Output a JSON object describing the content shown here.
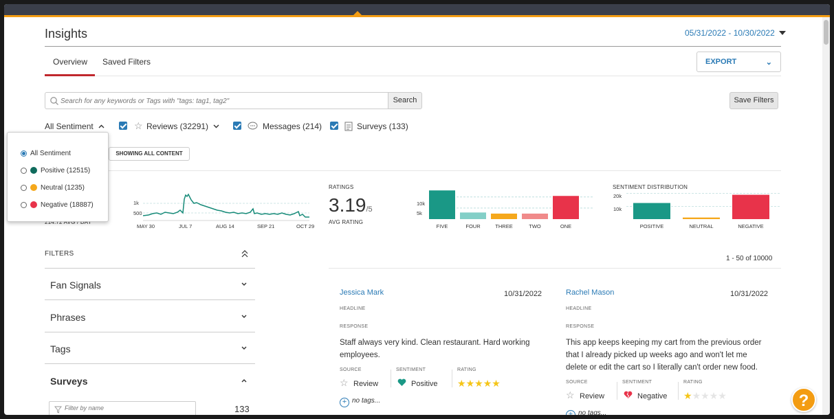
{
  "header": {
    "title": "Insights",
    "date_range": "05/31/2022 - 10/30/2022"
  },
  "tabs": [
    {
      "label": "Overview",
      "active": true
    },
    {
      "label": "Saved Filters",
      "active": false
    }
  ],
  "export": {
    "label": "EXPORT"
  },
  "search": {
    "placeholder": "Search for any keywords or Tags with \"tags: tag1, tag2\"",
    "button_label": "Search"
  },
  "save_filters": {
    "label": "Save Filters"
  },
  "sentiment_toggle": {
    "label": "All Sentiment"
  },
  "content_filters": [
    {
      "label": "Reviews (32291)",
      "checked": true,
      "icon": "star-icon"
    },
    {
      "label": "Messages (214)",
      "checked": true,
      "icon": "chat-bubble-icon"
    },
    {
      "label": "Surveys (133)",
      "checked": true,
      "icon": "clipboard-icon"
    }
  ],
  "showing": {
    "label": "SHOWING ALL CONTENT"
  },
  "sentiment_dropdown": {
    "options": [
      {
        "label": "All Sentiment",
        "selected": true,
        "color": ""
      },
      {
        "label": "Positive (12515)",
        "selected": false,
        "color": "#0f6b5c"
      },
      {
        "label": "Neutral (1235)",
        "selected": false,
        "color": "#f5a81c"
      },
      {
        "label": "Negative (18887)",
        "selected": false,
        "color": "#e8334a"
      }
    ]
  },
  "volume_chart": {
    "avg_label": "214.72 AVG / DAY",
    "y_ticks": [
      "1k",
      "500"
    ],
    "x_ticks": [
      "MAY 30",
      "JUL 7",
      "AUG 14",
      "SEP 21",
      "OCT 29"
    ]
  },
  "ratings": {
    "label": "RATINGS",
    "value": "3.19",
    "denominator": "/5",
    "sublabel": "AVG RATING"
  },
  "chart_data": [
    {
      "type": "bar",
      "categories": [
        "FIVE",
        "FOUR",
        "THREE",
        "TWO",
        "ONE"
      ],
      "values": [
        13000,
        3000,
        2500,
        2500,
        10500
      ],
      "colors": [
        "#1a9886",
        "#83cfc7",
        "#f5a81c",
        "#f08a8a",
        "#e8334a"
      ],
      "y_ticks": [
        "10k",
        "5k"
      ],
      "ylim": [
        0,
        14000
      ]
    },
    {
      "type": "bar",
      "title": "SENTIMENT DISTRIBUTION",
      "categories": [
        "POSITIVE",
        "NEUTRAL",
        "NEGATIVE"
      ],
      "values": [
        12515,
        1235,
        18887
      ],
      "colors": [
        "#1a9886",
        "#f5a81c",
        "#e8334a"
      ],
      "y_ticks": [
        "20k",
        "10k"
      ],
      "ylim": [
        0,
        24000
      ]
    }
  ],
  "filters": {
    "heading": "FILTERS",
    "sections": [
      {
        "label": "Fan Signals",
        "expanded": false
      },
      {
        "label": "Phrases",
        "expanded": false
      },
      {
        "label": "Tags",
        "expanded": false
      },
      {
        "label": "Surveys",
        "expanded": true
      }
    ],
    "name_filter_placeholder": "Filter by name",
    "name_filter_count": "133"
  },
  "results": {
    "pager": "1 - 50 of 10000",
    "cards": [
      {
        "name": "Jessica Mark",
        "date": "10/31/2022",
        "headline_label": "HEADLINE",
        "response_label": "RESPONSE",
        "response": "Staff always very kind. Clean restaurant. Hard working employees.",
        "source_label": "SOURCE",
        "source": "Review",
        "sentiment_label": "SENTIMENT",
        "sentiment": "Positive",
        "rating_label": "RATING",
        "rating": 5,
        "tags": "no tags..."
      },
      {
        "name": "Rachel Mason",
        "date": "10/31/2022",
        "headline_label": "HEADLINE",
        "response_label": "RESPONSE",
        "response": "This app keeps keeping my cart from the previous order that I already picked up weeks ago and won't let me delete or edit the cart so I literally can't order new food.",
        "source_label": "SOURCE",
        "source": "Review",
        "sentiment_label": "SENTIMENT",
        "sentiment": "Negative",
        "rating_label": "RATING",
        "rating": 1,
        "tags": "no tags..."
      }
    ]
  },
  "help": {
    "label": "?"
  }
}
